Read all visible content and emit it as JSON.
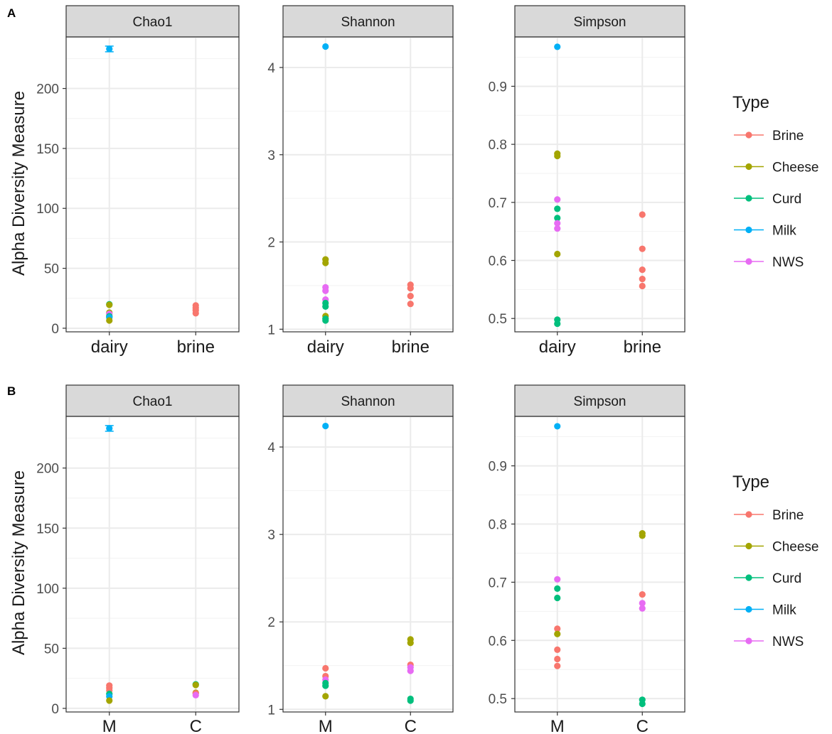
{
  "colors": {
    "Brine": "#F8766D",
    "Cheese": "#A3A500",
    "Curd": "#00BF7D",
    "Milk": "#00B0F6",
    "NWS": "#E76BF3"
  },
  "chart_data": [
    {
      "type": "scatter",
      "tag": "A",
      "ylabel": "Alpha Diversity Measure",
      "categories": [
        "dairy",
        "brine"
      ],
      "legend": {
        "title": "Type",
        "entries": [
          "Brine",
          "Cheese",
          "Curd",
          "Milk",
          "NWS"
        ],
        "placement": "right"
      },
      "facets": [
        {
          "title": "Chao1",
          "ylim": [
            -3,
            243
          ],
          "yticks": [
            0,
            50,
            100,
            150,
            200
          ],
          "points": [
            {
              "x": "dairy",
              "y": 233,
              "type": "Milk"
            },
            {
              "x": "dairy",
              "y": 20,
              "type": "Curd"
            },
            {
              "x": "dairy",
              "y": 19.5,
              "type": "Cheese"
            },
            {
              "x": "dairy",
              "y": 13,
              "type": "Cheese"
            },
            {
              "x": "dairy",
              "y": 12,
              "type": "NWS"
            },
            {
              "x": "dairy",
              "y": 10,
              "type": "Curd"
            },
            {
              "x": "dairy",
              "y": 9,
              "type": "Milk"
            },
            {
              "x": "dairy",
              "y": 6.5,
              "type": "Cheese"
            },
            {
              "x": "brine",
              "y": 19,
              "type": "Brine"
            },
            {
              "x": "brine",
              "y": 17,
              "type": "Brine"
            },
            {
              "x": "brine",
              "y": 15,
              "type": "Brine"
            },
            {
              "x": "brine",
              "y": 12.5,
              "type": "Brine"
            }
          ]
        },
        {
          "title": "Shannon",
          "ylim": [
            0.97,
            4.35
          ],
          "yticks": [
            1,
            2,
            3,
            4
          ],
          "points": [
            {
              "x": "dairy",
              "y": 4.24,
              "type": "Milk"
            },
            {
              "x": "dairy",
              "y": 1.8,
              "type": "Cheese"
            },
            {
              "x": "dairy",
              "y": 1.76,
              "type": "Cheese"
            },
            {
              "x": "dairy",
              "y": 1.48,
              "type": "NWS"
            },
            {
              "x": "dairy",
              "y": 1.44,
              "type": "NWS"
            },
            {
              "x": "dairy",
              "y": 1.34,
              "type": "NWS"
            },
            {
              "x": "dairy",
              "y": 1.3,
              "type": "Curd"
            },
            {
              "x": "dairy",
              "y": 1.26,
              "type": "Curd"
            },
            {
              "x": "dairy",
              "y": 1.15,
              "type": "Cheese"
            },
            {
              "x": "dairy",
              "y": 1.12,
              "type": "Curd"
            },
            {
              "x": "dairy",
              "y": 1.1,
              "type": "Curd"
            },
            {
              "x": "brine",
              "y": 1.51,
              "type": "Brine"
            },
            {
              "x": "brine",
              "y": 1.47,
              "type": "Brine"
            },
            {
              "x": "brine",
              "y": 1.38,
              "type": "Brine"
            },
            {
              "x": "brine",
              "y": 1.29,
              "type": "Brine"
            }
          ]
        },
        {
          "title": "Simpson",
          "ylim": [
            0.477,
            0.985
          ],
          "yticks": [
            0.5,
            0.6,
            0.7,
            0.8,
            0.9
          ],
          "points": [
            {
              "x": "dairy",
              "y": 0.968,
              "type": "Milk"
            },
            {
              "x": "dairy",
              "y": 0.784,
              "type": "Cheese"
            },
            {
              "x": "dairy",
              "y": 0.78,
              "type": "Cheese"
            },
            {
              "x": "dairy",
              "y": 0.705,
              "type": "NWS"
            },
            {
              "x": "dairy",
              "y": 0.689,
              "type": "Curd"
            },
            {
              "x": "dairy",
              "y": 0.673,
              "type": "Curd"
            },
            {
              "x": "dairy",
              "y": 0.664,
              "type": "NWS"
            },
            {
              "x": "dairy",
              "y": 0.655,
              "type": "NWS"
            },
            {
              "x": "dairy",
              "y": 0.611,
              "type": "Cheese"
            },
            {
              "x": "dairy",
              "y": 0.498,
              "type": "Curd"
            },
            {
              "x": "dairy",
              "y": 0.491,
              "type": "Curd"
            },
            {
              "x": "brine",
              "y": 0.679,
              "type": "Brine"
            },
            {
              "x": "brine",
              "y": 0.62,
              "type": "Brine"
            },
            {
              "x": "brine",
              "y": 0.584,
              "type": "Brine"
            },
            {
              "x": "brine",
              "y": 0.568,
              "type": "Brine"
            },
            {
              "x": "brine",
              "y": 0.556,
              "type": "Brine"
            }
          ]
        }
      ]
    },
    {
      "type": "scatter",
      "tag": "B",
      "ylabel": "Alpha Diversity Measure",
      "categories": [
        "M",
        "C"
      ],
      "legend": {
        "title": "Type",
        "entries": [
          "Brine",
          "Cheese",
          "Curd",
          "Milk",
          "NWS"
        ],
        "placement": "right"
      },
      "facets": [
        {
          "title": "Chao1",
          "ylim": [
            -3,
            243
          ],
          "yticks": [
            0,
            50,
            100,
            150,
            200
          ],
          "points": [
            {
              "x": "M",
              "y": 233,
              "type": "Milk"
            },
            {
              "x": "M",
              "y": 19,
              "type": "Brine"
            },
            {
              "x": "M",
              "y": 17,
              "type": "Brine"
            },
            {
              "x": "M",
              "y": 15,
              "type": "Brine"
            },
            {
              "x": "M",
              "y": 12,
              "type": "Curd"
            },
            {
              "x": "M",
              "y": 10,
              "type": "Milk"
            },
            {
              "x": "M",
              "y": 6.5,
              "type": "Cheese"
            },
            {
              "x": "C",
              "y": 20,
              "type": "Curd"
            },
            {
              "x": "C",
              "y": 19.5,
              "type": "Cheese"
            },
            {
              "x": "C",
              "y": 13,
              "type": "Cheese"
            },
            {
              "x": "C",
              "y": 12.5,
              "type": "Brine"
            },
            {
              "x": "C",
              "y": 11,
              "type": "NWS"
            }
          ]
        },
        {
          "title": "Shannon",
          "ylim": [
            0.97,
            4.35
          ],
          "yticks": [
            1,
            2,
            3,
            4
          ],
          "points": [
            {
              "x": "M",
              "y": 4.24,
              "type": "Milk"
            },
            {
              "x": "M",
              "y": 1.47,
              "type": "Brine"
            },
            {
              "x": "M",
              "y": 1.38,
              "type": "Brine"
            },
            {
              "x": "M",
              "y": 1.34,
              "type": "NWS"
            },
            {
              "x": "M",
              "y": 1.3,
              "type": "Curd"
            },
            {
              "x": "M",
              "y": 1.27,
              "type": "Curd"
            },
            {
              "x": "M",
              "y": 1.15,
              "type": "Cheese"
            },
            {
              "x": "C",
              "y": 1.8,
              "type": "Cheese"
            },
            {
              "x": "C",
              "y": 1.76,
              "type": "Cheese"
            },
            {
              "x": "C",
              "y": 1.51,
              "type": "Brine"
            },
            {
              "x": "C",
              "y": 1.48,
              "type": "NWS"
            },
            {
              "x": "C",
              "y": 1.44,
              "type": "NWS"
            },
            {
              "x": "C",
              "y": 1.12,
              "type": "Curd"
            },
            {
              "x": "C",
              "y": 1.1,
              "type": "Curd"
            }
          ]
        },
        {
          "title": "Simpson",
          "ylim": [
            0.477,
            0.985
          ],
          "yticks": [
            0.5,
            0.6,
            0.7,
            0.8,
            0.9
          ],
          "points": [
            {
              "x": "M",
              "y": 0.968,
              "type": "Milk"
            },
            {
              "x": "M",
              "y": 0.705,
              "type": "NWS"
            },
            {
              "x": "M",
              "y": 0.689,
              "type": "Curd"
            },
            {
              "x": "M",
              "y": 0.673,
              "type": "Curd"
            },
            {
              "x": "M",
              "y": 0.62,
              "type": "Brine"
            },
            {
              "x": "M",
              "y": 0.611,
              "type": "Cheese"
            },
            {
              "x": "M",
              "y": 0.584,
              "type": "Brine"
            },
            {
              "x": "M",
              "y": 0.568,
              "type": "Brine"
            },
            {
              "x": "M",
              "y": 0.556,
              "type": "Brine"
            },
            {
              "x": "C",
              "y": 0.784,
              "type": "Cheese"
            },
            {
              "x": "C",
              "y": 0.78,
              "type": "Cheese"
            },
            {
              "x": "C",
              "y": 0.679,
              "type": "Brine"
            },
            {
              "x": "C",
              "y": 0.664,
              "type": "NWS"
            },
            {
              "x": "C",
              "y": 0.655,
              "type": "NWS"
            },
            {
              "x": "C",
              "y": 0.498,
              "type": "Curd"
            },
            {
              "x": "C",
              "y": 0.491,
              "type": "Curd"
            }
          ]
        }
      ]
    }
  ]
}
